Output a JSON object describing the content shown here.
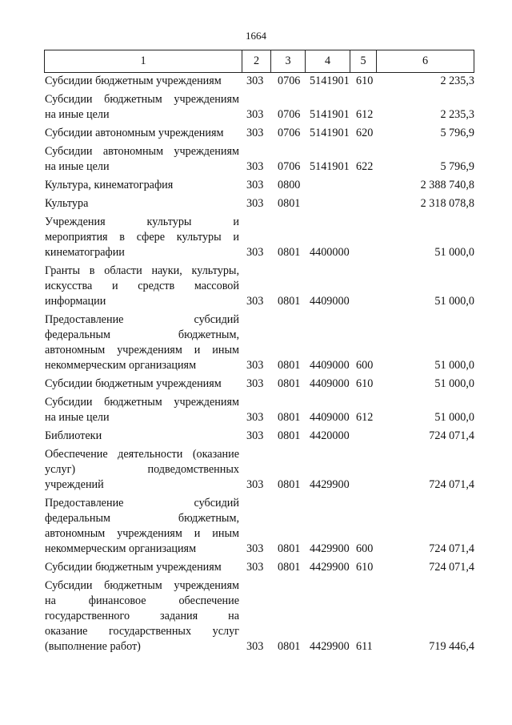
{
  "page_number": "1664",
  "header": [
    "1",
    "2",
    "3",
    "4",
    "5",
    "6"
  ],
  "rows": [
    {
      "lines": [
        "Субсидии бюджетным учреждениям"
      ],
      "c2": "303",
      "c3": "0706",
      "c4": "5141901",
      "c5": "610",
      "c6": "2 235,3"
    },
    {
      "lines": [
        "Субсидии бюджетным учреждениям",
        "на иные цели"
      ],
      "c2": "303",
      "c3": "0706",
      "c4": "5141901",
      "c5": "612",
      "c6": "2 235,3"
    },
    {
      "lines": [
        "Субсидии автономным учреждениям"
      ],
      "c2": "303",
      "c3": "0706",
      "c4": "5141901",
      "c5": "620",
      "c6": "5 796,9"
    },
    {
      "lines": [
        "Субсидии автономным учреждениям",
        "на иные цели"
      ],
      "c2": "303",
      "c3": "0706",
      "c4": "5141901",
      "c5": "622",
      "c6": "5 796,9"
    },
    {
      "lines": [
        "Культура, кинематография"
      ],
      "c2": "303",
      "c3": "0800",
      "c4": "",
      "c5": "",
      "c6": "2 388 740,8"
    },
    {
      "lines": [
        "Культура"
      ],
      "c2": "303",
      "c3": "0801",
      "c4": "",
      "c5": "",
      "c6": "2 318 078,8"
    },
    {
      "lines": [
        "Учреждения культуры и",
        "мероприятия в сфере культуры и",
        "кинематографии"
      ],
      "c2": "303",
      "c3": "0801",
      "c4": "4400000",
      "c5": "",
      "c6": "51 000,0"
    },
    {
      "lines": [
        "Гранты в области науки, культуры,",
        "искусства и средств массовой",
        "информации"
      ],
      "c2": "303",
      "c3": "0801",
      "c4": "4409000",
      "c5": "",
      "c6": "51 000,0"
    },
    {
      "lines": [
        "Предоставление субсидий",
        "федеральным бюджетным,",
        "автономным учреждениям и иным",
        "некоммерческим организациям"
      ],
      "c2": "303",
      "c3": "0801",
      "c4": "4409000",
      "c5": "600",
      "c6": "51 000,0"
    },
    {
      "lines": [
        "Субсидии бюджетным учреждениям"
      ],
      "c2": "303",
      "c3": "0801",
      "c4": "4409000",
      "c5": "610",
      "c6": "51 000,0"
    },
    {
      "lines": [
        "Субсидии бюджетным учреждениям",
        "на иные цели"
      ],
      "c2": "303",
      "c3": "0801",
      "c4": "4409000",
      "c5": "612",
      "c6": "51 000,0"
    },
    {
      "lines": [
        "Библиотеки"
      ],
      "c2": "303",
      "c3": "0801",
      "c4": "4420000",
      "c5": "",
      "c6": "724 071,4"
    },
    {
      "lines": [
        "Обеспечение деятельности (оказание",
        "услуг) подведомственных",
        "учреждений"
      ],
      "c2": "303",
      "c3": "0801",
      "c4": "4429900",
      "c5": "",
      "c6": "724 071,4"
    },
    {
      "lines": [
        "Предоставление субсидий",
        "федеральным бюджетным,",
        "автономным учреждениям и иным",
        "некоммерческим организациям"
      ],
      "c2": "303",
      "c3": "0801",
      "c4": "4429900",
      "c5": "600",
      "c6": "724 071,4"
    },
    {
      "lines": [
        "Субсидии бюджетным учреждениям"
      ],
      "c2": "303",
      "c3": "0801",
      "c4": "4429900",
      "c5": "610",
      "c6": "724 071,4"
    },
    {
      "lines": [
        "Субсидии бюджетным учреждениям",
        "на финансовое обеспечение",
        "государственного задания на",
        "оказание государственных услуг",
        "(выполнение работ)"
      ],
      "c2": "303",
      "c3": "0801",
      "c4": "4429900",
      "c5": "611",
      "c6": "719 446,4"
    }
  ]
}
